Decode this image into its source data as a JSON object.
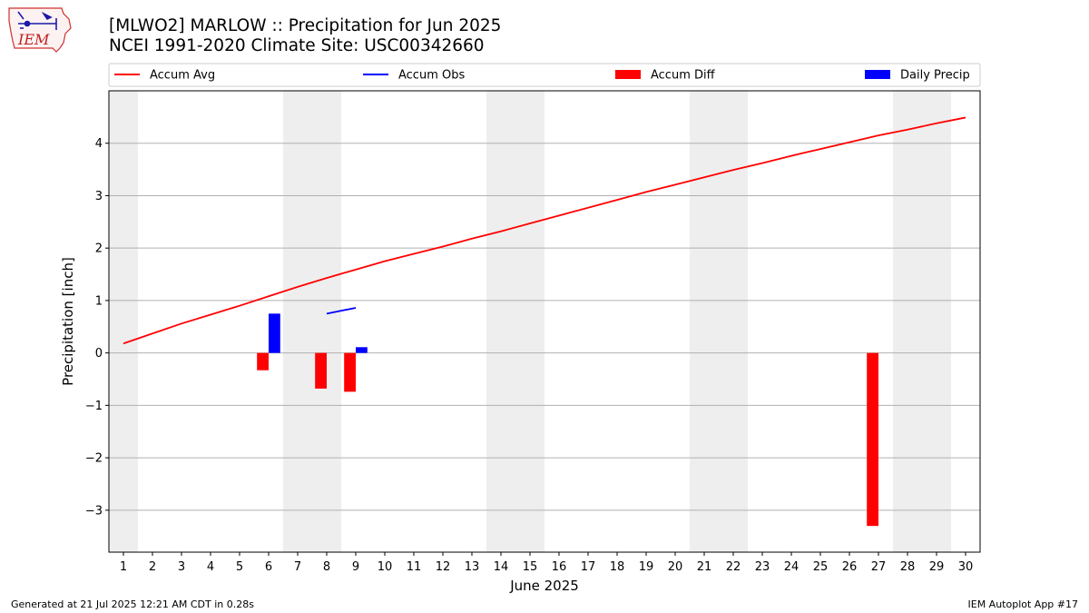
{
  "header": {
    "title": "[MLWO2] MARLOW :: Precipitation for Jun 2025",
    "subtitle": "NCEI 1991-2020 Climate Site: USC00342660"
  },
  "logo": {
    "text": "IEM",
    "icon": "iem-iowa-logo-icon"
  },
  "footer": {
    "generated": "Generated at 21 Jul 2025 12:21 AM CDT in 0.28s",
    "app": "IEM Autoplot App #17"
  },
  "chart_data": {
    "type": "bar",
    "xlabel": "June 2025",
    "ylabel": "Precipitation [inch]",
    "xlim": [
      0.5,
      30.5
    ],
    "ylim": [
      -3.8,
      5.0
    ],
    "x_ticks": [
      1,
      2,
      3,
      4,
      5,
      6,
      7,
      8,
      9,
      10,
      11,
      12,
      13,
      14,
      15,
      16,
      17,
      18,
      19,
      20,
      21,
      22,
      23,
      24,
      25,
      26,
      27,
      28,
      29,
      30
    ],
    "y_ticks": [
      -3,
      -2,
      -1,
      0,
      1,
      2,
      3,
      4
    ],
    "y_tick_labels": [
      "−3",
      "−2",
      "−1",
      "0",
      "1",
      "2",
      "3",
      "4"
    ],
    "grid": "horizontal",
    "legend_position": "top",
    "weekend_shading": [
      [
        0.5,
        1.5
      ],
      [
        6.5,
        8.5
      ],
      [
        13.5,
        15.5
      ],
      [
        20.5,
        22.5
      ],
      [
        27.5,
        29.5
      ]
    ],
    "colors": {
      "accum_avg": "#ff0000",
      "accum_obs": "#0000ff",
      "accum_diff": "#ff0000",
      "daily_precip": "#0000ff",
      "weekend": "#eeeeee",
      "grid": "#b0b0b0"
    },
    "series": [
      {
        "name": "Accum Avg",
        "kind": "line",
        "x": [
          1,
          2,
          3,
          4,
          5,
          6,
          7,
          8,
          9,
          10,
          11,
          12,
          13,
          14,
          15,
          16,
          17,
          18,
          19,
          20,
          21,
          22,
          23,
          24,
          25,
          26,
          27,
          28,
          29,
          30
        ],
        "values": [
          0.18,
          0.37,
          0.56,
          0.73,
          0.9,
          1.08,
          1.26,
          1.43,
          1.59,
          1.75,
          1.89,
          2.03,
          2.18,
          2.32,
          2.47,
          2.62,
          2.77,
          2.92,
          3.07,
          3.21,
          3.35,
          3.49,
          3.62,
          3.76,
          3.89,
          4.02,
          4.15,
          4.26,
          4.38,
          4.49
        ]
      },
      {
        "name": "Accum Obs",
        "kind": "line",
        "x": [
          8,
          9
        ],
        "values": [
          0.75,
          0.86
        ]
      },
      {
        "name": "Accum Diff",
        "kind": "bar",
        "x": [
          6,
          8,
          9,
          27
        ],
        "values": [
          -0.33,
          -0.68,
          -0.74,
          -3.3
        ]
      },
      {
        "name": "Daily Precip",
        "kind": "bar",
        "x": [
          6,
          9
        ],
        "values": [
          0.75,
          0.11
        ]
      }
    ]
  }
}
